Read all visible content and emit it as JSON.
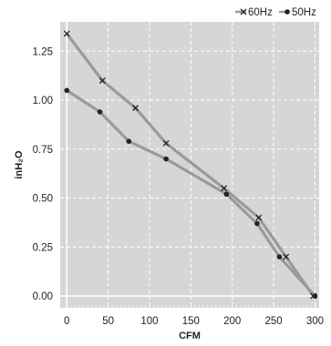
{
  "chart_data": {
    "type": "line",
    "title": "",
    "xlabel": "CFM",
    "ylabel": "inH₂O",
    "xlim": [
      -8,
      305
    ],
    "ylim": [
      -0.06,
      1.4
    ],
    "x_ticks": [
      0,
      50,
      100,
      150,
      200,
      250,
      300
    ],
    "y_ticks": [
      0.0,
      0.25,
      0.5,
      0.75,
      1.0,
      1.25
    ],
    "x_tick_labels": [
      "0",
      "50",
      "100",
      "150",
      "200",
      "250",
      "300"
    ],
    "y_tick_labels": [
      "0.00",
      "0.25",
      "0.50",
      "0.75",
      "1.00",
      "1.25"
    ],
    "grid": true,
    "legend_position": "top-right",
    "series": [
      {
        "name": "60Hz",
        "marker": "x",
        "color": "#9a9a9a",
        "x": [
          0,
          43,
          83,
          120,
          190,
          232,
          265,
          298
        ],
        "y": [
          1.34,
          1.1,
          0.96,
          0.78,
          0.55,
          0.4,
          0.2,
          0.0
        ]
      },
      {
        "name": "50Hz",
        "marker": "circle",
        "color": "#9a9a9a",
        "x": [
          0,
          40,
          75,
          120,
          193,
          230,
          257,
          300
        ],
        "y": [
          1.05,
          0.94,
          0.79,
          0.7,
          0.52,
          0.37,
          0.2,
          0.0
        ]
      }
    ]
  }
}
